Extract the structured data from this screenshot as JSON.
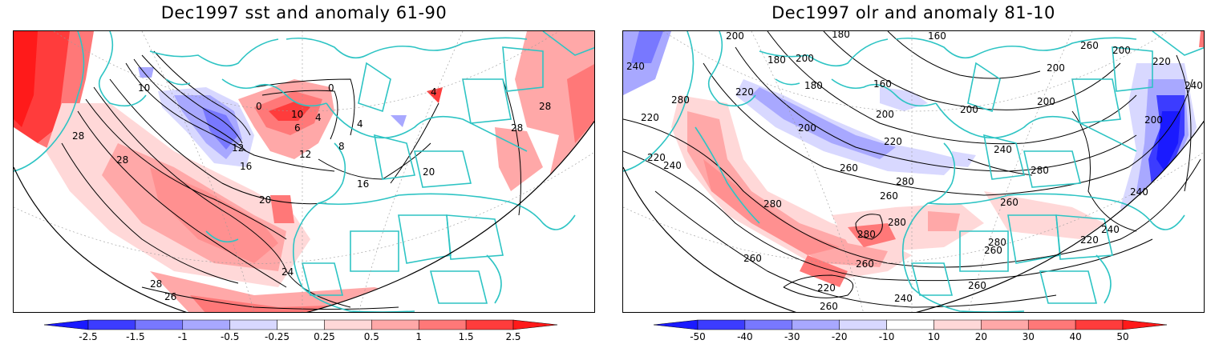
{
  "panels": [
    {
      "title": "Dec1997 sst and anomaly 61-90",
      "colorbar": {
        "ticks": [
          "-2.5",
          "-1.5",
          "-1",
          "-0.5",
          "-0.25",
          "0.25",
          "0.5",
          "1",
          "1.5",
          "2.5"
        ],
        "colors": [
          "#1a1aff",
          "#3c3cff",
          "#7878ff",
          "#a8a8ff",
          "#d8d8ff",
          "#ffffff",
          "#ffd8d8",
          "#ffa8a8",
          "#ff7878",
          "#ff3c3c",
          "#ff1a1a"
        ]
      },
      "contour_labels": [
        "0",
        "0",
        "4",
        "6",
        "10",
        "12",
        "8",
        "4",
        "16",
        "12",
        "20",
        "16",
        "20",
        "24",
        "28",
        "28",
        "28",
        "28",
        "26",
        "28",
        "10",
        "4"
      ]
    },
    {
      "title": "Dec1997 olr and anomaly 81-10",
      "colorbar": {
        "ticks": [
          "-50",
          "-40",
          "-30",
          "-20",
          "-10",
          "10",
          "20",
          "30",
          "40",
          "50"
        ],
        "colors": [
          "#1a1aff",
          "#3c3cff",
          "#7878ff",
          "#a8a8ff",
          "#d8d8ff",
          "#ffffff",
          "#ffd8d8",
          "#ffa8a8",
          "#ff7878",
          "#ff3c3c",
          "#ff1a1a"
        ]
      },
      "contour_labels": [
        "240",
        "200",
        "180",
        "160",
        "180",
        "220",
        "200",
        "180",
        "160",
        "200",
        "200",
        "260",
        "220",
        "240",
        "280",
        "200",
        "200",
        "200",
        "220",
        "220",
        "200",
        "240",
        "260",
        "280",
        "220",
        "240",
        "280",
        "200",
        "260",
        "280",
        "260",
        "280",
        "280",
        "260",
        "280",
        "240",
        "260",
        "220",
        "240",
        "260",
        "220",
        "260",
        "240",
        "260"
      ]
    }
  ],
  "colors": {
    "coastline": "#2ec4c4",
    "frame": "#000000"
  }
}
